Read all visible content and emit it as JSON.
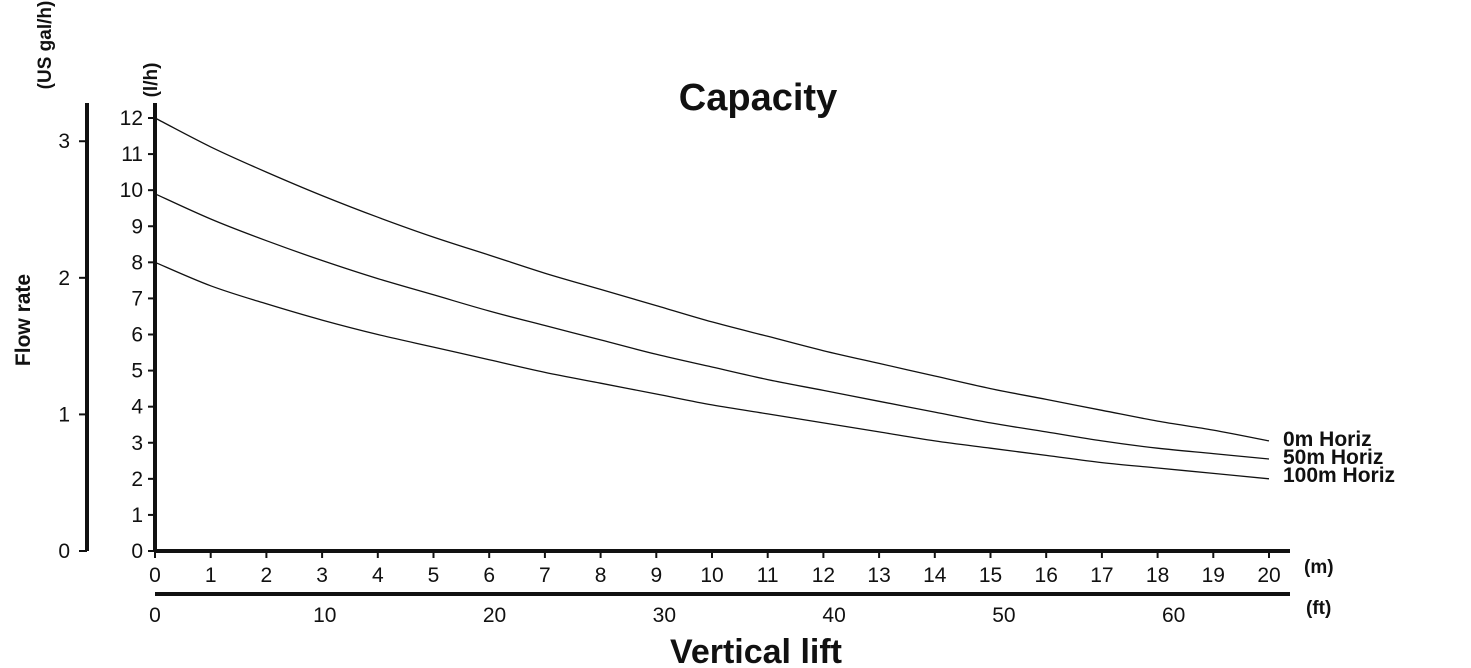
{
  "chart_data": {
    "type": "line",
    "title": "Capacity",
    "xlabel": "Vertical lift",
    "ylabel": "Flow rate",
    "x_unit": "(m)",
    "x2_unit": "(ft)",
    "y_unit": "(l/h)",
    "y2_unit": "(US gal/h)",
    "xlim": [
      0,
      20
    ],
    "ylim": [
      0,
      12
    ],
    "x_ticks": [
      "0",
      "1",
      "2",
      "3",
      "4",
      "5",
      "6",
      "7",
      "8",
      "9",
      "10",
      "11",
      "12",
      "13",
      "14",
      "15",
      "16",
      "17",
      "18",
      "19",
      "20"
    ],
    "x2_ticks": [
      "0",
      "10",
      "20",
      "30",
      "40",
      "50",
      "60"
    ],
    "x2_tick_values_ft": [
      0,
      10,
      20,
      30,
      40,
      50,
      60
    ],
    "y_ticks": [
      "0",
      "1",
      "2",
      "3",
      "4",
      "5",
      "6",
      "7",
      "8",
      "9",
      "10",
      "11",
      "12"
    ],
    "y2_ticks": [
      "0",
      "1",
      "2",
      "3"
    ],
    "y2_tick_values_usgal": [
      0,
      1,
      2,
      3
    ],
    "grid": false,
    "x": [
      0,
      1,
      2,
      3,
      4,
      5,
      6,
      7,
      8,
      9,
      10,
      11,
      12,
      13,
      14,
      15,
      16,
      17,
      18,
      19,
      20
    ],
    "series": [
      {
        "name": "0m Horiz",
        "values": [
          12.0,
          11.2,
          10.5,
          9.85,
          9.25,
          8.7,
          8.2,
          7.7,
          7.25,
          6.8,
          6.35,
          5.95,
          5.55,
          5.2,
          4.85,
          4.5,
          4.2,
          3.9,
          3.6,
          3.35,
          3.05
        ]
      },
      {
        "name": "50m Horiz",
        "values": [
          9.9,
          9.2,
          8.6,
          8.05,
          7.55,
          7.1,
          6.65,
          6.25,
          5.85,
          5.45,
          5.1,
          4.75,
          4.45,
          4.15,
          3.85,
          3.55,
          3.3,
          3.05,
          2.85,
          2.7,
          2.55
        ]
      },
      {
        "name": "100m Horiz",
        "values": [
          8.0,
          7.35,
          6.85,
          6.4,
          6.0,
          5.65,
          5.3,
          4.95,
          4.65,
          4.35,
          4.05,
          3.8,
          3.55,
          3.3,
          3.05,
          2.85,
          2.65,
          2.45,
          2.3,
          2.15,
          2.0
        ]
      }
    ]
  }
}
